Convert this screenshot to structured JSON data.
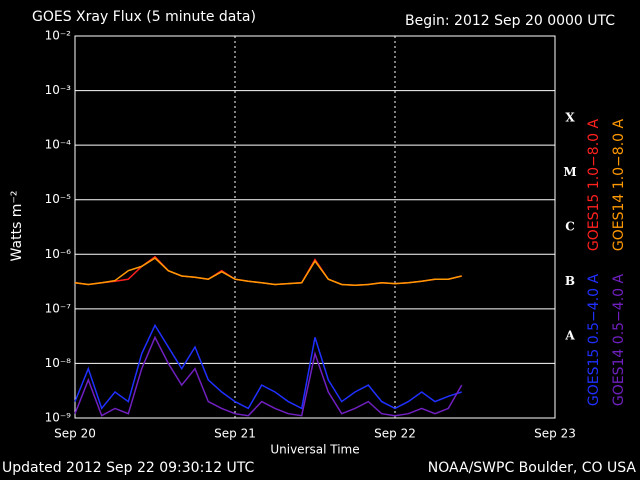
{
  "chart_data": {
    "type": "line",
    "title": "GOES Xray Flux (5 minute data)",
    "subtitle": "Begin:  2012 Sep 20 0000 UTC",
    "x_label": "Universal Time",
    "y_label": "Watts m⁻²",
    "footer_left": "Updated 2012 Sep 22 09:30:12 UTC",
    "footer_right": "NOAA/SWPC Boulder, CO USA",
    "y_log": true,
    "grid": true,
    "flare_classes": [
      "X",
      "M",
      "C",
      "B",
      "A"
    ],
    "xlim": [
      "2012-09-20T00:00",
      "2012-09-23T00:00"
    ],
    "xticks": [
      {
        "value": "2012-09-20T00:00",
        "label": "Sep 20"
      },
      {
        "value": "2012-09-21T00:00",
        "label": "Sep 21"
      },
      {
        "value": "2012-09-22T00:00",
        "label": "Sep 22"
      },
      {
        "value": "2012-09-23T00:00",
        "label": "Sep 23"
      }
    ],
    "ylim": [
      1e-09,
      0.01
    ],
    "yticks": [
      {
        "value": 1e-09,
        "label": "10⁻⁹"
      },
      {
        "value": 1e-08,
        "label": "10⁻⁸"
      },
      {
        "value": 1e-07,
        "label": "10⁻⁷"
      },
      {
        "value": 1e-06,
        "label": "10⁻⁶"
      },
      {
        "value": 1e-05,
        "label": "10⁻⁵"
      },
      {
        "value": 0.0001,
        "label": "10⁻⁴"
      },
      {
        "value": 0.001,
        "label": "10⁻³"
      },
      {
        "value": 0.01,
        "label": "10⁻²"
      }
    ],
    "x": [
      "2012-09-20T00:00",
      "2012-09-20T02:00",
      "2012-09-20T04:00",
      "2012-09-20T06:00",
      "2012-09-20T08:00",
      "2012-09-20T10:00",
      "2012-09-20T12:00",
      "2012-09-20T14:00",
      "2012-09-20T16:00",
      "2012-09-20T18:00",
      "2012-09-20T20:00",
      "2012-09-20T22:00",
      "2012-09-21T00:00",
      "2012-09-21T02:00",
      "2012-09-21T04:00",
      "2012-09-21T06:00",
      "2012-09-21T08:00",
      "2012-09-21T10:00",
      "2012-09-21T12:00",
      "2012-09-21T14:00",
      "2012-09-21T16:00",
      "2012-09-21T18:00",
      "2012-09-21T20:00",
      "2012-09-21T22:00",
      "2012-09-22T00:00",
      "2012-09-22T02:00",
      "2012-09-22T04:00",
      "2012-09-22T06:00",
      "2012-09-22T08:00",
      "2012-09-22T10:00"
    ],
    "series": [
      {
        "name": "GOES15 1.0−8.0 A",
        "color": "#ff2020",
        "values": [
          3e-07,
          2.8e-07,
          3e-07,
          3.2e-07,
          3.5e-07,
          6e-07,
          9e-07,
          5e-07,
          4e-07,
          3.8e-07,
          3.5e-07,
          5e-07,
          3.5e-07,
          3.2e-07,
          3e-07,
          2.8e-07,
          2.9e-07,
          3e-07,
          8e-07,
          3.5e-07,
          2.8e-07,
          2.7e-07,
          2.8e-07,
          3e-07,
          2.9e-07,
          3e-07,
          3.2e-07,
          3.5e-07,
          3.5e-07,
          4e-07
        ]
      },
      {
        "name": "GOES14 1.0−8.0 A",
        "color": "#ff9900",
        "values": [
          3e-07,
          2.8e-07,
          3e-07,
          3.3e-07,
          5e-07,
          6e-07,
          8.5e-07,
          5e-07,
          4e-07,
          3.8e-07,
          3.5e-07,
          4.8e-07,
          3.5e-07,
          3.2e-07,
          3e-07,
          2.8e-07,
          2.9e-07,
          3e-07,
          7.5e-07,
          3.5e-07,
          2.8e-07,
          2.7e-07,
          2.8e-07,
          3e-07,
          2.9e-07,
          3e-07,
          3.2e-07,
          3.5e-07,
          3.5e-07,
          4e-07
        ]
      },
      {
        "name": "GOES15 0.5−4.0 A",
        "color": "#2030ff",
        "values": [
          2e-09,
          8e-09,
          1.5e-09,
          3e-09,
          2e-09,
          1.5e-08,
          5e-08,
          2e-08,
          8e-09,
          2e-08,
          5e-09,
          3e-09,
          2e-09,
          1.5e-09,
          4e-09,
          3e-09,
          2e-09,
          1.5e-09,
          3e-08,
          5e-09,
          2e-09,
          3e-09,
          4e-09,
          2e-09,
          1.5e-09,
          2e-09,
          3e-09,
          2e-09,
          2.5e-09,
          3e-09
        ]
      },
      {
        "name": "GOES14 0.5−4.0 A",
        "color": "#7020c0",
        "values": [
          1.2e-09,
          5e-09,
          1.1e-09,
          1.5e-09,
          1.2e-09,
          8e-09,
          3e-08,
          1e-08,
          4e-09,
          8e-09,
          2e-09,
          1.5e-09,
          1.2e-09,
          1.1e-09,
          2e-09,
          1.5e-09,
          1.2e-09,
          1.1e-09,
          1.5e-08,
          3e-09,
          1.2e-09,
          1.5e-09,
          2e-09,
          1.2e-09,
          1.1e-09,
          1.2e-09,
          1.5e-09,
          1.2e-09,
          1.5e-09,
          4e-09
        ]
      }
    ]
  }
}
